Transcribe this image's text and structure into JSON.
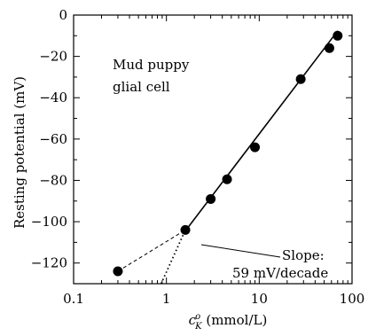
{
  "chart_data": {
    "type": "scatter",
    "x_scale": "log",
    "xlim": [
      0.1,
      100
    ],
    "ylim": [
      -130,
      0
    ],
    "xlabel": "c_K^o (mmol/L)",
    "xlabel_parts": {
      "symbol": "c",
      "sub": "K",
      "sup": "o",
      "unit": " (mmol/L)"
    },
    "ylabel": "Resting potential (mV)",
    "x_ticks": [
      0.1,
      1,
      10,
      100
    ],
    "x_tick_labels": [
      "0.1",
      "1",
      "10",
      "100"
    ],
    "y_ticks": [
      0,
      -20,
      -40,
      -60,
      -80,
      -100,
      -120
    ],
    "y_tick_labels": [
      "0",
      "−20",
      "−40",
      "−60",
      "−80",
      "−100",
      "−120"
    ],
    "grid": false,
    "series": [
      {
        "points": [
          [
            0.3,
            -124
          ],
          [
            1.6,
            -104
          ],
          [
            3.0,
            -89
          ],
          [
            4.5,
            -79.5
          ],
          [
            9.0,
            -64
          ],
          [
            28.0,
            -31
          ],
          [
            57.0,
            -16
          ],
          [
            70.0,
            -10
          ]
        ]
      }
    ],
    "fit_line": {
      "x_range": [
        1.6,
        70
      ],
      "slope_mV_per_decade": 59,
      "intercept_at_1": -116.5,
      "style": "solid"
    },
    "extension_dashed": {
      "from": [
        0.3,
        -124
      ],
      "to": [
        1.6,
        -104
      ]
    },
    "extension_dotted": {
      "from": [
        0.8,
        -134
      ],
      "to": [
        1.6,
        -104
      ]
    },
    "annotations": {
      "cell_line1": "Mud puppy",
      "cell_line2": "glial cell",
      "slope_line1": "Slope:",
      "slope_line2": "59 mV/decade"
    }
  }
}
